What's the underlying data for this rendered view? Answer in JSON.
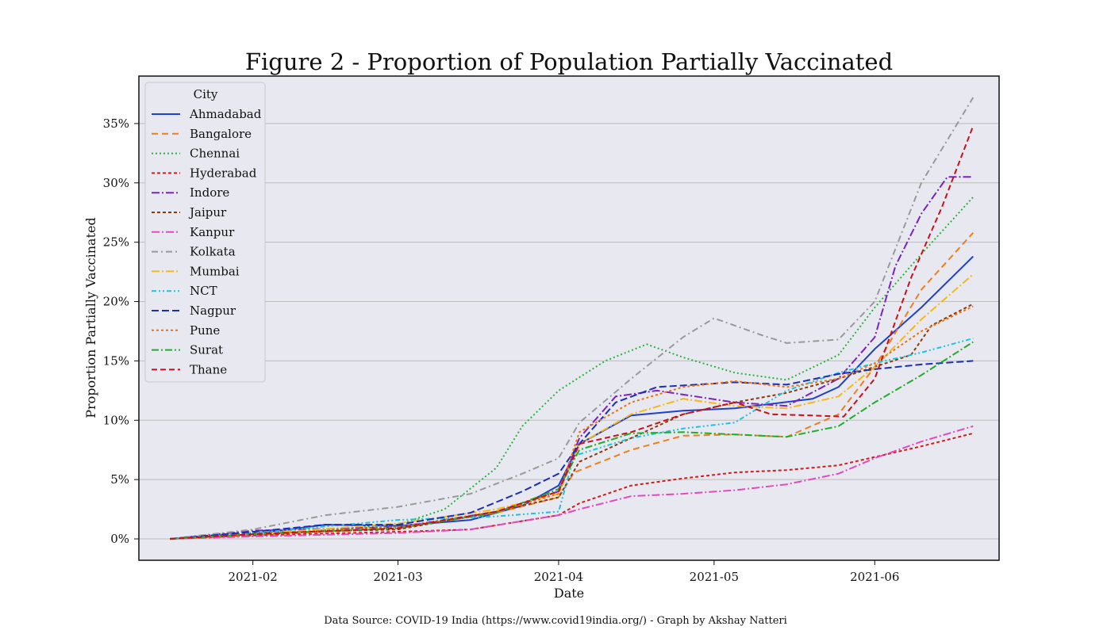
{
  "chart_data": {
    "type": "line",
    "title": "Figure 2 - Proportion of Population Partially Vaccinated",
    "xlabel": "Date",
    "ylabel": "Proportion Partially Vaccinated",
    "footer": "Data Source:  COVID-19 India (https://www.covid19india.org/) - Graph by Akshay Natteri",
    "x_tick_labels": [
      "2021-02",
      "2021-03",
      "2021-04",
      "2021-05",
      "2021-06"
    ],
    "x_tick_dates": [
      "2021-02-01",
      "2021-03-01",
      "2021-04-01",
      "2021-05-01",
      "2021-06-01"
    ],
    "y_tick_labels": [
      "0%",
      "5%",
      "10%",
      "15%",
      "20%",
      "25%",
      "30%",
      "35%"
    ],
    "y_tick_values": [
      0,
      5,
      10,
      15,
      20,
      25,
      30,
      35
    ],
    "xlim": [
      "2021-01-10",
      "2021-06-25"
    ],
    "ylim": [
      -1.8,
      39
    ],
    "grid": "horizontal",
    "legend": {
      "title": "City",
      "placement": "upper left"
    },
    "background_color": "#e8e8f0",
    "series": [
      {
        "name": "Ahmadabad",
        "color": "#1f3fcf",
        "dash": "solid",
        "x": [
          "2021-01-16",
          "2021-02-01",
          "2021-02-15",
          "2021-03-01",
          "2021-03-15",
          "2021-03-25",
          "2021-04-01",
          "2021-04-05",
          "2021-04-15",
          "2021-04-25",
          "2021-05-05",
          "2021-05-20",
          "2021-05-25",
          "2021-06-01",
          "2021-06-10",
          "2021-06-20"
        ],
        "y": [
          0,
          0.4,
          1.2,
          1.1,
          1.6,
          2.8,
          4.5,
          8,
          10.4,
          10.8,
          11.0,
          11.8,
          12.8,
          16,
          19.5,
          23.8
        ]
      },
      {
        "name": "Bangalore",
        "color": "#f07f1b",
        "dash": "8,5",
        "x": [
          "2021-01-16",
          "2021-02-01",
          "2021-03-01",
          "2021-03-20",
          "2021-04-01",
          "2021-04-04",
          "2021-04-15",
          "2021-04-25",
          "2021-05-05",
          "2021-05-15",
          "2021-05-25",
          "2021-06-01",
          "2021-06-10",
          "2021-06-20"
        ],
        "y": [
          0,
          0.3,
          0.9,
          2.2,
          3.5,
          5.6,
          7.5,
          8.7,
          8.8,
          8.6,
          10.5,
          14.5,
          21,
          25.8
        ]
      },
      {
        "name": "Chennai",
        "color": "#2ab53a",
        "dash": "2,3",
        "x": [
          "2021-01-16",
          "2021-02-01",
          "2021-03-01",
          "2021-03-10",
          "2021-03-20",
          "2021-03-25",
          "2021-04-01",
          "2021-04-10",
          "2021-04-18",
          "2021-04-25",
          "2021-05-05",
          "2021-05-15",
          "2021-05-25",
          "2021-06-01",
          "2021-06-10",
          "2021-06-20"
        ],
        "y": [
          0,
          0.3,
          1.2,
          2.5,
          6,
          9.5,
          12.5,
          15,
          16.4,
          15.3,
          14.0,
          13.4,
          15.5,
          19.5,
          24,
          28.8
        ]
      },
      {
        "name": "Hyderabad",
        "color": "#d11c1c",
        "dash": "4,3",
        "x": [
          "2021-01-16",
          "2021-02-01",
          "2021-03-01",
          "2021-03-15",
          "2021-04-01",
          "2021-04-05",
          "2021-04-15",
          "2021-04-25",
          "2021-05-05",
          "2021-05-15",
          "2021-05-25",
          "2021-06-01",
          "2021-06-10",
          "2021-06-20"
        ],
        "y": [
          0,
          0.3,
          0.6,
          0.8,
          2,
          3,
          4.5,
          5.1,
          5.6,
          5.8,
          6.2,
          6.9,
          7.8,
          8.9
        ]
      },
      {
        "name": "Indore",
        "color": "#7a23c2",
        "dash": "10,3,2,3",
        "x": [
          "2021-01-16",
          "2021-02-01",
          "2021-03-01",
          "2021-03-20",
          "2021-04-01",
          "2021-04-05",
          "2021-04-12",
          "2021-04-20",
          "2021-05-05",
          "2021-05-15",
          "2021-05-25",
          "2021-06-01",
          "2021-06-05",
          "2021-06-10",
          "2021-06-15",
          "2021-06-20"
        ],
        "y": [
          0,
          0.7,
          1.0,
          2.3,
          4,
          8.5,
          12,
          12.5,
          11.5,
          11.2,
          13.5,
          17,
          23,
          27.4,
          30.5,
          30.5
        ]
      },
      {
        "name": "Jaipur",
        "color": "#8b3b0a",
        "dash": "4,3",
        "x": [
          "2021-01-16",
          "2021-02-01",
          "2021-03-01",
          "2021-03-20",
          "2021-04-01",
          "2021-04-05",
          "2021-04-15",
          "2021-04-25",
          "2021-05-05",
          "2021-05-15",
          "2021-05-25",
          "2021-06-01",
          "2021-06-08",
          "2021-06-12",
          "2021-06-20"
        ],
        "y": [
          0,
          0.5,
          0.8,
          2.3,
          3.5,
          6.5,
          8.5,
          10.5,
          11.5,
          12.3,
          13.5,
          14.5,
          15.5,
          18,
          19.8
        ]
      },
      {
        "name": "Kanpur",
        "color": "#e34bbd",
        "dash": "10,3,2,3",
        "x": [
          "2021-01-16",
          "2021-02-01",
          "2021-03-01",
          "2021-03-15",
          "2021-04-01",
          "2021-04-05",
          "2021-04-15",
          "2021-04-25",
          "2021-05-05",
          "2021-05-15",
          "2021-05-25",
          "2021-06-01",
          "2021-06-10",
          "2021-06-20"
        ],
        "y": [
          0,
          0.2,
          0.5,
          0.8,
          2,
          2.5,
          3.6,
          3.8,
          4.1,
          4.6,
          5.5,
          6.8,
          8.2,
          9.5
        ]
      },
      {
        "name": "Kolkata",
        "color": "#999999",
        "dash": "8,4,2,4",
        "x": [
          "2021-01-16",
          "2021-02-01",
          "2021-02-15",
          "2021-03-01",
          "2021-03-15",
          "2021-03-25",
          "2021-04-01",
          "2021-04-05",
          "2021-04-15",
          "2021-04-25",
          "2021-05-01",
          "2021-05-10",
          "2021-05-15",
          "2021-05-25",
          "2021-06-01",
          "2021-06-10",
          "2021-06-20"
        ],
        "y": [
          0,
          0.8,
          2.0,
          2.7,
          3.8,
          5.5,
          6.8,
          9.8,
          13.5,
          17,
          18.6,
          17.2,
          16.5,
          16.8,
          20,
          30,
          37.2
        ]
      },
      {
        "name": "Mumbai",
        "color": "#f5b818",
        "dash": "10,3,2,3",
        "x": [
          "2021-01-16",
          "2021-02-01",
          "2021-03-01",
          "2021-03-20",
          "2021-04-01",
          "2021-04-05",
          "2021-04-15",
          "2021-04-25",
          "2021-05-05",
          "2021-05-15",
          "2021-05-25",
          "2021-06-01",
          "2021-06-10",
          "2021-06-20"
        ],
        "y": [
          0,
          0.4,
          1.3,
          2.5,
          3.8,
          8,
          10.5,
          11.8,
          11.2,
          11.0,
          12.0,
          14.5,
          18.5,
          22.3
        ]
      },
      {
        "name": "NCT",
        "color": "#1cc3e0",
        "dash": "6,3,2,3,2,3",
        "x": [
          "2021-01-16",
          "2021-02-01",
          "2021-03-01",
          "2021-03-20",
          "2021-04-01",
          "2021-04-04",
          "2021-04-15",
          "2021-04-25",
          "2021-05-05",
          "2021-05-15",
          "2021-05-25",
          "2021-06-01",
          "2021-06-10",
          "2021-06-20"
        ],
        "y": [
          0,
          0.5,
          1.6,
          1.9,
          2.3,
          7,
          8.5,
          9.3,
          9.8,
          12.5,
          14.0,
          14.8,
          15.7,
          16.9
        ]
      },
      {
        "name": "Nagpur",
        "color": "#1a2fb5",
        "dash": "9,4",
        "x": [
          "2021-01-16",
          "2021-02-01",
          "2021-02-15",
          "2021-03-01",
          "2021-03-15",
          "2021-03-25",
          "2021-04-01",
          "2021-04-05",
          "2021-04-12",
          "2021-04-20",
          "2021-05-05",
          "2021-05-15",
          "2021-05-25",
          "2021-06-01",
          "2021-06-10",
          "2021-06-20"
        ],
        "y": [
          0,
          0.6,
          1.2,
          1.2,
          2.2,
          4.0,
          5.5,
          8,
          11.5,
          12.8,
          13.2,
          13.0,
          13.9,
          14.3,
          14.7,
          15.0
        ]
      },
      {
        "name": "Pune",
        "color": "#e8740f",
        "dash": "3,3",
        "x": [
          "2021-01-16",
          "2021-02-01",
          "2021-03-01",
          "2021-03-20",
          "2021-04-01",
          "2021-04-05",
          "2021-04-15",
          "2021-04-25",
          "2021-05-05",
          "2021-05-15",
          "2021-05-25",
          "2021-06-01",
          "2021-06-10",
          "2021-06-20"
        ],
        "y": [
          0,
          0.4,
          1.0,
          2.3,
          3.8,
          9,
          11.5,
          12.8,
          13.3,
          12.8,
          13.5,
          14.8,
          17.5,
          19.6
        ]
      },
      {
        "name": "Surat",
        "color": "#1fae2a",
        "dash": "9,3,2,3",
        "x": [
          "2021-01-16",
          "2021-02-01",
          "2021-03-01",
          "2021-03-20",
          "2021-04-01",
          "2021-04-05",
          "2021-04-15",
          "2021-04-25",
          "2021-05-05",
          "2021-05-15",
          "2021-05-25",
          "2021-06-01",
          "2021-06-10",
          "2021-06-20"
        ],
        "y": [
          0,
          0.4,
          0.9,
          2.2,
          4.2,
          7.5,
          8.9,
          9.0,
          8.8,
          8.6,
          9.5,
          11.5,
          13.8,
          16.6
        ]
      },
      {
        "name": "Thane",
        "color": "#c8101a",
        "dash": "7,4",
        "x": [
          "2021-01-16",
          "2021-02-01",
          "2021-03-01",
          "2021-03-20",
          "2021-04-01",
          "2021-04-05",
          "2021-04-15",
          "2021-04-25",
          "2021-05-05",
          "2021-05-12",
          "2021-05-20",
          "2021-05-26",
          "2021-06-01",
          "2021-06-08",
          "2021-06-14",
          "2021-06-20"
        ],
        "y": [
          0,
          0.4,
          0.9,
          2.3,
          4.0,
          8,
          9,
          10.5,
          11.5,
          10.5,
          10.4,
          10.3,
          13.5,
          22,
          28,
          34.8
        ]
      }
    ]
  }
}
